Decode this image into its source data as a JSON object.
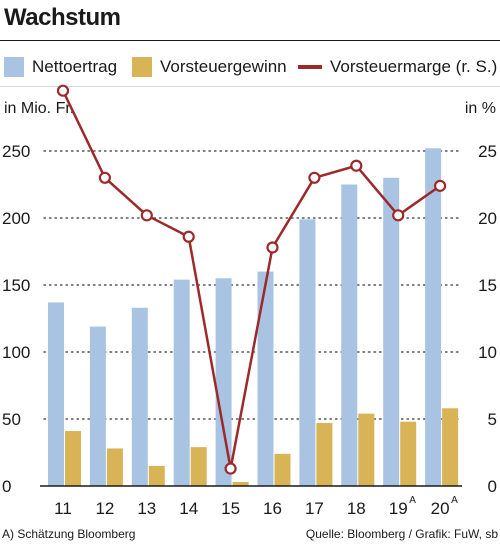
{
  "title": "Wachstum",
  "legend": [
    {
      "label": "Nettoertrag",
      "color": "#a9c4e2",
      "kind": "box"
    },
    {
      "label": "Vorsteuergewinn",
      "color": "#d8b457",
      "kind": "box"
    },
    {
      "label": "Vorsteuermarge (r. S.)",
      "color": "#9c2a2a",
      "kind": "line"
    }
  ],
  "unit_left": "in Mio. Fr.",
  "unit_right": "in %",
  "footer_left": "A) Schätzung Bloomberg",
  "footer_right": "Quelle: Bloomberg / Grafik: FuW, sb",
  "chart_data": {
    "type": "bar",
    "categories": [
      "11",
      "12",
      "13",
      "14",
      "15",
      "16",
      "17",
      "18",
      "19",
      "20"
    ],
    "category_superscripts": [
      "",
      "",
      "",
      "",
      "",
      "",
      "",
      "",
      "A",
      "A"
    ],
    "series": [
      {
        "name": "Nettoertrag",
        "type": "bar",
        "axis": "left",
        "color": "#a9c4e2",
        "values": [
          137,
          119,
          133,
          154,
          155,
          160,
          199,
          225,
          230,
          252
        ]
      },
      {
        "name": "Vorsteuergewinn",
        "type": "bar",
        "axis": "left",
        "color": "#d8b457",
        "values": [
          41,
          28,
          15,
          29,
          3,
          24,
          47,
          54,
          48,
          58
        ]
      },
      {
        "name": "Vorsteuermarge (r. S.)",
        "type": "line",
        "axis": "right",
        "color": "#9c2a2a",
        "values": [
          29.5,
          23.0,
          20.2,
          18.6,
          1.3,
          17.8,
          23.0,
          23.9,
          20.2,
          22.4
        ]
      }
    ],
    "left_axis": {
      "min": 0,
      "max": 250,
      "ticks": [
        0,
        50,
        100,
        150,
        200,
        250
      ]
    },
    "right_axis": {
      "min": 0,
      "max": 25,
      "ticks": [
        0,
        5,
        10,
        15,
        20,
        25
      ]
    },
    "grid": "dotted horizontal"
  }
}
